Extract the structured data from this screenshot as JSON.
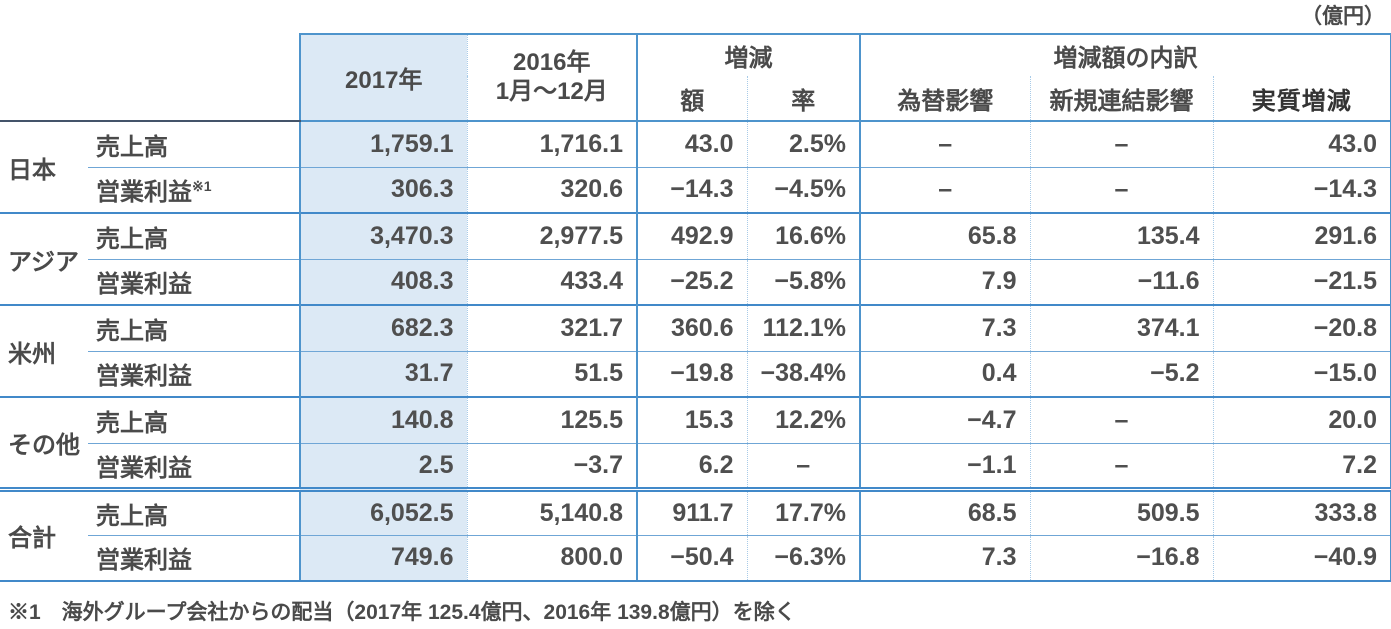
{
  "unit_label": "（億円）",
  "colors": {
    "accent_blue": "#4189c9",
    "dotted_blue": "#a8cbe8",
    "highlight_fill": "#dce9f5",
    "header_dark_rule": "#44546a",
    "text": "#4f4f4f"
  },
  "table": {
    "headers": {
      "year_2017": "2017年",
      "year_2016_line1": "2016年",
      "year_2016_line2": "1月～12月",
      "change_group": "増減",
      "change_amount": "額",
      "change_rate": "率",
      "breakdown_group": "増減額の内訳",
      "fx_impact": "為替影響",
      "new_consolidation_impact": "新規連結影響",
      "real_change": "実質増減"
    },
    "groups": [
      {
        "region": "日本",
        "rows": [
          {
            "item": "売上高",
            "item_sup": "",
            "values": [
              "1,759.1",
              "1,716.1",
              "43.0",
              "2.5%",
              "–",
              "–",
              "43.0"
            ]
          },
          {
            "item": "営業利益",
            "item_sup": "※1",
            "values": [
              "306.3",
              "320.6",
              "−14.3",
              "−4.5%",
              "–",
              "–",
              "−14.3"
            ]
          }
        ]
      },
      {
        "region": "アジア",
        "rows": [
          {
            "item": "売上高",
            "item_sup": "",
            "values": [
              "3,470.3",
              "2,977.5",
              "492.9",
              "16.6%",
              "65.8",
              "135.4",
              "291.6"
            ]
          },
          {
            "item": "営業利益",
            "item_sup": "",
            "values": [
              "408.3",
              "433.4",
              "−25.2",
              "−5.8%",
              "7.9",
              "−11.6",
              "−21.5"
            ]
          }
        ]
      },
      {
        "region": "米州",
        "rows": [
          {
            "item": "売上高",
            "item_sup": "",
            "values": [
              "682.3",
              "321.7",
              "360.6",
              "112.1%",
              "7.3",
              "374.1",
              "−20.8"
            ]
          },
          {
            "item": "営業利益",
            "item_sup": "",
            "values": [
              "31.7",
              "51.5",
              "−19.8",
              "−38.4%",
              "0.4",
              "−5.2",
              "−15.0"
            ]
          }
        ]
      },
      {
        "region": "その他",
        "rows": [
          {
            "item": "売上高",
            "item_sup": "",
            "values": [
              "140.8",
              "125.5",
              "15.3",
              "12.2%",
              "−4.7",
              "–",
              "20.0"
            ]
          },
          {
            "item": "営業利益",
            "item_sup": "",
            "values": [
              "2.5",
              "−3.7",
              "6.2",
              "–",
              "−1.1",
              "–",
              "7.2"
            ]
          }
        ]
      },
      {
        "region": "合計",
        "rows": [
          {
            "item": "売上高",
            "item_sup": "",
            "values": [
              "6,052.5",
              "5,140.8",
              "911.7",
              "17.7%",
              "68.5",
              "509.5",
              "333.8"
            ]
          },
          {
            "item": "営業利益",
            "item_sup": "",
            "values": [
              "749.6",
              "800.0",
              "−50.4",
              "−6.3%",
              "7.3",
              "−16.8",
              "−40.9"
            ]
          }
        ]
      }
    ]
  },
  "footnote": "※1　海外グループ会社からの配当（2017年 125.4億円、2016年 139.8億円）を除く"
}
